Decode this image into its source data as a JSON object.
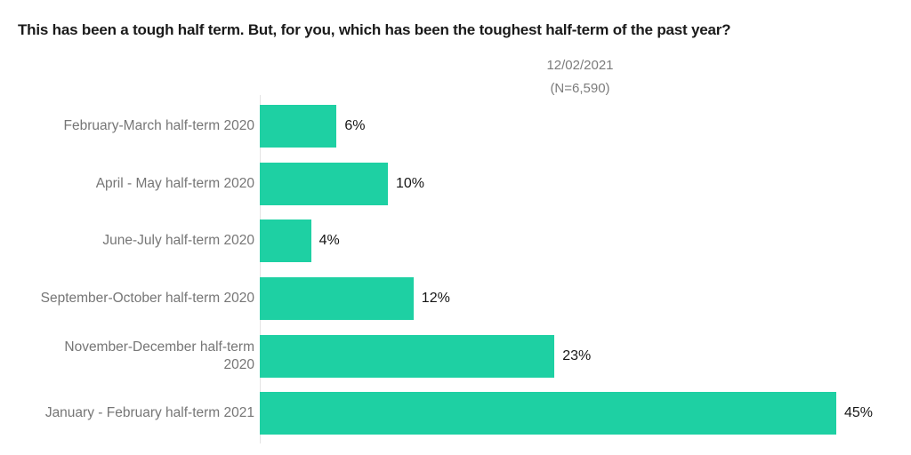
{
  "chart_data": {
    "type": "bar",
    "orientation": "horizontal",
    "title": "This has been a tough half term. But, for you, which has been the toughest half-term of the past year?",
    "subtitle_lines": [
      "12/02/2021",
      "(N=6,590)"
    ],
    "categories": [
      "February-March half-term 2020",
      "April - May half-term 2020",
      "June-July half-term 2020",
      "September-October half-term 2020",
      "November-December half-term 2020",
      "January - February half-term 2021"
    ],
    "values": [
      6,
      10,
      4,
      12,
      23,
      45
    ],
    "value_labels": [
      "6%",
      "10%",
      "4%",
      "12%",
      "23%",
      "45%"
    ],
    "xlim": [
      0,
      50
    ],
    "grid": false,
    "legend": false,
    "xlabel": "",
    "ylabel": "",
    "bar_color": "#1ed0a3",
    "axis_line_color": "#e3e3e3",
    "title_color": "#1a1a1a",
    "label_color": "#767676",
    "value_label_color": "#161616",
    "subtitle_color": "#7c7c7c",
    "rows": [
      {
        "label": "February-March half-term 2020",
        "value": 6,
        "value_label": "6%"
      },
      {
        "label": "April - May half-term 2020",
        "value": 10,
        "value_label": "10%"
      },
      {
        "label": "June-July half-term 2020",
        "value": 4,
        "value_label": "4%"
      },
      {
        "label": "September-October half-term 2020",
        "value": 12,
        "value_label": "12%"
      },
      {
        "label": "November-December half-term\n2020",
        "value": 23,
        "value_label": "23%"
      },
      {
        "label": "January - February half-term 2021",
        "value": 45,
        "value_label": "45%"
      }
    ]
  }
}
